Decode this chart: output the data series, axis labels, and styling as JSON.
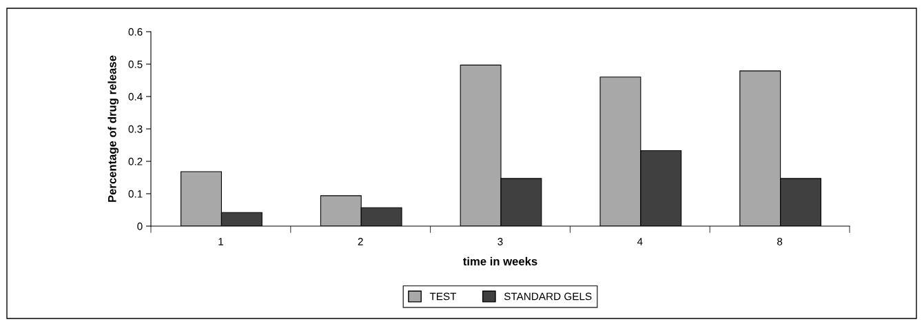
{
  "chart_data": {
    "type": "bar",
    "xlabel": "time in weeks",
    "ylabel": "Percentage of drug release",
    "categories": [
      "1",
      "2",
      "3",
      "4",
      "8"
    ],
    "series": [
      {
        "name": "TEST",
        "color": "#a8a8a8",
        "values": [
          0.168,
          0.094,
          0.497,
          0.46,
          0.479
        ]
      },
      {
        "name": "STANDARD GELS",
        "color": "#404040",
        "values": [
          0.042,
          0.057,
          0.147,
          0.233,
          0.147
        ]
      }
    ],
    "ylim": [
      0,
      0.6
    ],
    "yticks": [
      0,
      0.1,
      0.2,
      0.3,
      0.4,
      0.5,
      0.6
    ],
    "grid": false,
    "legend": "bottom"
  }
}
